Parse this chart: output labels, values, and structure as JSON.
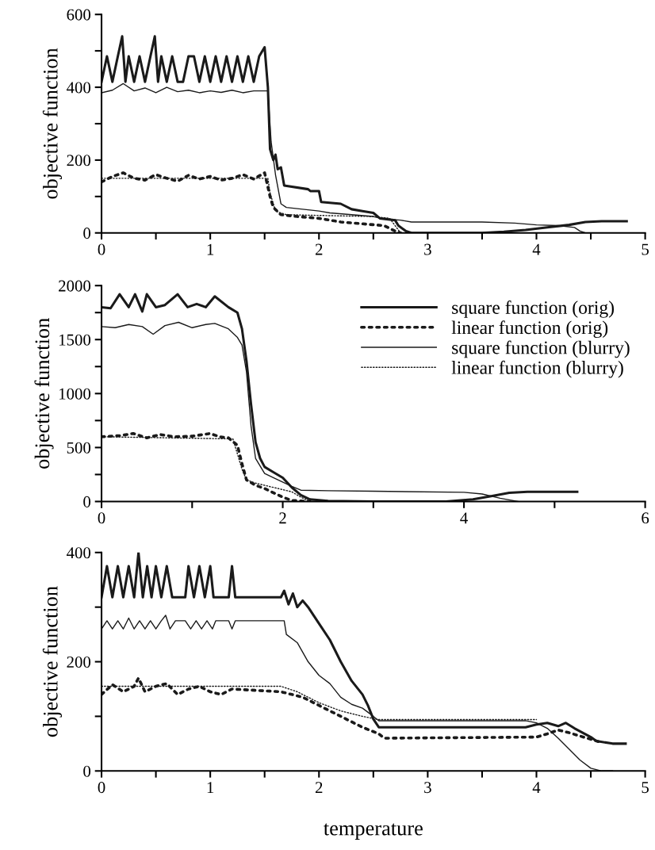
{
  "chart_data": [
    {
      "type": "line",
      "ylabel": "objective function",
      "xlim": [
        0,
        5
      ],
      "ylim": [
        0,
        600
      ],
      "xticks": [
        0,
        {
          "value": 0.5,
          "label": null
        },
        1,
        {
          "value": 1.5,
          "label": null
        },
        2,
        {
          "value": 2.5,
          "label": null
        },
        3,
        {
          "value": 3.5,
          "label": null
        },
        4,
        {
          "value": 4.5,
          "label": null
        },
        5
      ],
      "yticks": [
        0,
        {
          "value": 100,
          "label": null
        },
        200,
        {
          "value": 300,
          "label": null
        },
        400,
        {
          "value": 500,
          "label": null
        },
        600
      ],
      "series": [
        {
          "color": "#1a1a1a",
          "line_style": "solid",
          "x": [
            0,
            0.05,
            0.1,
            0.15,
            0.19,
            0.22,
            0.25,
            0.3,
            0.35,
            0.4,
            0.45,
            0.49,
            0.52,
            0.55,
            0.6,
            0.65,
            0.7,
            0.75,
            0.8,
            0.85,
            0.9,
            0.95,
            1.0,
            1.05,
            1.1,
            1.15,
            1.2,
            1.25,
            1.3,
            1.35,
            1.4,
            1.45,
            1.5,
            1.53,
            1.55,
            1.58,
            1.6,
            1.62,
            1.65,
            1.68,
            1.9,
            1.92,
            2.0,
            2.02,
            2.2,
            2.3,
            2.4,
            2.5,
            2.56,
            2.7,
            2.73,
            2.8,
            2.85,
            3.5,
            3.7,
            3.9,
            4.1,
            4.3,
            4.45,
            4.6,
            4.83
          ],
          "values": [
            415,
            485,
            415,
            485,
            540,
            415,
            485,
            415,
            485,
            415,
            485,
            540,
            415,
            485,
            415,
            485,
            415,
            415,
            485,
            485,
            415,
            485,
            415,
            485,
            415,
            485,
            415,
            485,
            415,
            485,
            415,
            485,
            510,
            400,
            230,
            200,
            215,
            175,
            180,
            130,
            120,
            115,
            115,
            85,
            80,
            65,
            60,
            55,
            40,
            35,
            20,
            5,
            0,
            0,
            3,
            8,
            15,
            22,
            30,
            32,
            32
          ]
        },
        {
          "color": "#1a1a1a",
          "line_style": "dotted",
          "x": [
            0,
            0.1,
            0.2,
            0.3,
            0.4,
            0.5,
            0.6,
            0.7,
            0.8,
            0.9,
            1.0,
            1.1,
            1.2,
            1.3,
            1.4,
            1.5,
            1.55,
            1.58,
            1.65,
            1.8,
            2.0,
            2.2,
            2.4,
            2.6,
            2.7,
            2.75
          ],
          "values": [
            140,
            155,
            165,
            150,
            145,
            160,
            150,
            142,
            158,
            148,
            155,
            145,
            150,
            160,
            148,
            165,
            100,
            70,
            50,
            45,
            40,
            30,
            25,
            20,
            5,
            0
          ]
        },
        {
          "color": "#1a1a1a",
          "line_style": "solid",
          "x": [
            0,
            0.1,
            0.2,
            0.3,
            0.4,
            0.5,
            0.6,
            0.7,
            0.8,
            0.9,
            1.0,
            1.1,
            1.2,
            1.3,
            1.4,
            1.5,
            1.53,
            1.56,
            1.6,
            1.65,
            1.7,
            2.0,
            2.1,
            2.5,
            2.6,
            2.75,
            2.85,
            3.5,
            3.8,
            4.0,
            4.2,
            4.35,
            4.4,
            4.45,
            4.6
          ],
          "values": [
            385,
            392,
            410,
            390,
            398,
            385,
            400,
            388,
            392,
            385,
            390,
            386,
            392,
            385,
            390,
            390,
            390,
            250,
            160,
            80,
            70,
            60,
            55,
            45,
            38,
            35,
            30,
            30,
            27,
            22,
            20,
            15,
            5,
            0,
            0
          ]
        },
        {
          "color": "#1a1a1a",
          "line_style": "dotted",
          "x": [
            0,
            1.53,
            1.55,
            1.6,
            1.7,
            2.0,
            2.5,
            2.65,
            2.7,
            2.75
          ],
          "values": [
            150,
            150,
            110,
            60,
            50,
            48,
            45,
            40,
            20,
            0
          ]
        }
      ]
    },
    {
      "type": "line",
      "ylabel": "objective function",
      "xlim": [
        0,
        6
      ],
      "ylim": [
        0,
        2000
      ],
      "legend": "top right",
      "xticks": [
        0,
        {
          "value": 1,
          "label": null
        },
        2,
        {
          "value": 3,
          "label": null
        },
        4,
        {
          "value": 5,
          "label": null
        },
        6
      ],
      "yticks": [
        0,
        {
          "value": 250,
          "label": null
        },
        500,
        {
          "value": 750,
          "label": null
        },
        1000,
        {
          "value": 1250,
          "label": null
        },
        1500,
        {
          "value": 1750,
          "label": null
        },
        2000
      ],
      "series": [
        {
          "name": "square function (orig)",
          "color": "#1a1a1a",
          "line_style": "solid",
          "x": [
            0,
            0.1,
            0.2,
            0.3,
            0.37,
            0.45,
            0.5,
            0.6,
            0.7,
            0.84,
            0.95,
            1.05,
            1.15,
            1.25,
            1.4,
            1.5,
            1.55,
            1.6,
            1.65,
            1.7,
            1.75,
            1.8,
            1.9,
            2.0,
            2.1,
            2.2,
            2.3,
            2.5,
            3.0,
            3.8,
            4.1,
            4.3,
            4.5,
            4.7,
            5.25
          ],
          "values": [
            1800,
            1790,
            1920,
            1800,
            1920,
            1760,
            1920,
            1800,
            1820,
            1920,
            1800,
            1830,
            1800,
            1900,
            1800,
            1750,
            1600,
            1300,
            900,
            550,
            400,
            320,
            270,
            220,
            130,
            60,
            20,
            5,
            0,
            0,
            20,
            50,
            80,
            90,
            90
          ]
        },
        {
          "name": "linear function (orig)",
          "color": "#1a1a1a",
          "line_style": "dotted",
          "x": [
            0,
            0.2,
            0.35,
            0.5,
            0.65,
            0.8,
            1.0,
            1.2,
            1.3,
            1.4,
            1.5,
            1.55,
            1.6,
            1.7,
            1.8,
            1.9,
            2.0,
            2.1,
            2.3
          ],
          "values": [
            600,
            610,
            630,
            590,
            620,
            600,
            605,
            630,
            600,
            590,
            520,
            350,
            200,
            150,
            120,
            80,
            40,
            10,
            0
          ]
        },
        {
          "name": "square function (blurry)",
          "color": "#1a1a1a",
          "line_style": "solid",
          "x": [
            0,
            0.15,
            0.3,
            0.45,
            0.57,
            0.7,
            0.85,
            1.0,
            1.15,
            1.25,
            1.4,
            1.5,
            1.55,
            1.6,
            1.65,
            1.7,
            1.8,
            1.9,
            2.1,
            2.2,
            2.5,
            3.0,
            4.0,
            4.2,
            4.4,
            4.6
          ],
          "values": [
            1620,
            1610,
            1640,
            1620,
            1550,
            1630,
            1660,
            1610,
            1640,
            1650,
            1600,
            1520,
            1450,
            1200,
            700,
            400,
            260,
            220,
            140,
            105,
            100,
            95,
            85,
            70,
            30,
            0
          ]
        },
        {
          "name": "linear function (blurry)",
          "color": "#1a1a1a",
          "line_style": "dotted",
          "x": [
            0,
            1.45,
            1.55,
            1.6,
            1.7,
            1.9,
            2.0,
            2.1,
            2.2,
            2.3
          ],
          "values": [
            600,
            580,
            300,
            200,
            170,
            130,
            110,
            90,
            40,
            0
          ]
        }
      ]
    },
    {
      "type": "line",
      "ylabel": "objective function",
      "xlabel": "temperature",
      "xlim": [
        0,
        5
      ],
      "ylim": [
        0,
        400
      ],
      "xticks": [
        0,
        {
          "value": 0.5,
          "label": null
        },
        1,
        {
          "value": 1.5,
          "label": null
        },
        2,
        {
          "value": 2.5,
          "label": null
        },
        3,
        {
          "value": 3.5,
          "label": null
        },
        4,
        {
          "value": 4.5,
          "label": null
        },
        5
      ],
      "yticks": [
        0,
        {
          "value": 100,
          "label": null
        },
        200,
        {
          "value": 300,
          "label": null
        },
        400
      ],
      "series": [
        {
          "color": "#1a1a1a",
          "line_style": "solid",
          "x": [
            0,
            0.05,
            0.1,
            0.15,
            0.2,
            0.25,
            0.3,
            0.34,
            0.38,
            0.42,
            0.46,
            0.5,
            0.55,
            0.6,
            0.65,
            0.77,
            0.8,
            0.85,
            0.9,
            0.95,
            1.0,
            1.03,
            1.06,
            1.17,
            1.2,
            1.23,
            1.65,
            1.68,
            1.72,
            1.76,
            1.8,
            1.85,
            1.9,
            2.0,
            2.1,
            2.2,
            2.3,
            2.4,
            2.45,
            2.5,
            2.55,
            3.9,
            4.0,
            4.1,
            4.2,
            4.27,
            4.35,
            4.5,
            4.55,
            4.7,
            4.82
          ],
          "values": [
            318,
            375,
            318,
            375,
            318,
            375,
            318,
            400,
            318,
            375,
            318,
            375,
            318,
            375,
            318,
            318,
            375,
            318,
            375,
            318,
            375,
            318,
            318,
            318,
            375,
            318,
            318,
            330,
            305,
            325,
            300,
            312,
            300,
            270,
            240,
            200,
            165,
            140,
            120,
            95,
            80,
            80,
            85,
            88,
            82,
            88,
            78,
            62,
            55,
            50,
            50
          ]
        },
        {
          "color": "#1a1a1a",
          "line_style": "dotted",
          "x": [
            0,
            0.1,
            0.2,
            0.3,
            0.34,
            0.4,
            0.5,
            0.6,
            0.7,
            0.8,
            0.9,
            1.0,
            1.1,
            1.2,
            1.65,
            1.85,
            2.0,
            2.2,
            2.4,
            2.55,
            2.6,
            4.0,
            4.1,
            4.2,
            4.3,
            4.5,
            4.6
          ],
          "values": [
            140,
            158,
            145,
            155,
            170,
            145,
            155,
            160,
            140,
            150,
            155,
            145,
            140,
            150,
            145,
            135,
            120,
            100,
            80,
            68,
            60,
            62,
            68,
            75,
            70,
            58,
            52
          ]
        },
        {
          "color": "#1a1a1a",
          "line_style": "solid",
          "x": [
            0,
            0.05,
            0.1,
            0.15,
            0.2,
            0.25,
            0.3,
            0.35,
            0.4,
            0.45,
            0.5,
            0.55,
            0.59,
            0.63,
            0.68,
            0.77,
            0.82,
            0.87,
            0.92,
            0.97,
            1.02,
            1.05,
            1.17,
            1.2,
            1.23,
            1.68,
            1.7,
            1.8,
            1.9,
            2.0,
            2.1,
            2.2,
            2.3,
            2.4,
            2.5,
            2.55,
            3.9,
            4.0,
            4.1,
            4.2,
            4.3,
            4.4,
            4.5,
            4.6,
            4.7
          ],
          "values": [
            260,
            275,
            260,
            275,
            260,
            280,
            260,
            275,
            260,
            275,
            260,
            275,
            285,
            260,
            275,
            275,
            260,
            275,
            260,
            275,
            260,
            275,
            275,
            260,
            275,
            275,
            250,
            235,
            200,
            175,
            160,
            135,
            122,
            115,
            100,
            92,
            92,
            88,
            78,
            60,
            40,
            20,
            5,
            0,
            0
          ]
        },
        {
          "color": "#1a1a1a",
          "line_style": "dotted",
          "x": [
            0,
            1.65,
            1.8,
            2.0,
            2.2,
            2.4,
            2.55,
            3.9,
            4.0
          ],
          "values": [
            155,
            155,
            145,
            125,
            110,
            100,
            94,
            94,
            94
          ]
        }
      ]
    }
  ]
}
